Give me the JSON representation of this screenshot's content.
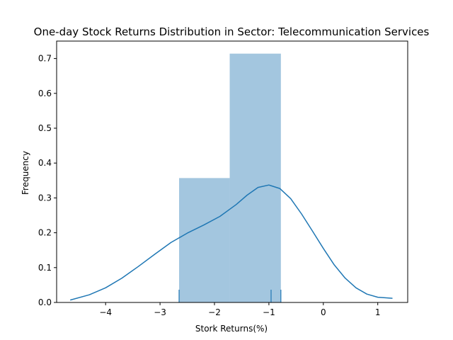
{
  "chart_data": {
    "type": "bar",
    "title": "One-day Stock Returns Distribution in Sector: Telecommunication Services",
    "xlabel": "Stork Returns(%)",
    "ylabel": "Frequency",
    "xlim": [
      -4.9,
      1.55
    ],
    "ylim": [
      0,
      0.75
    ],
    "xticks": [
      -4,
      -3,
      -2,
      -1,
      0,
      1
    ],
    "yticks": [
      0.0,
      0.1,
      0.2,
      0.3,
      0.4,
      0.5,
      0.6,
      0.7
    ],
    "grid": false,
    "histogram": {
      "bins": [
        {
          "x0": -2.65,
          "x1": -1.72,
          "value": 0.357
        },
        {
          "x0": -1.72,
          "x1": -0.78,
          "value": 0.714
        }
      ],
      "color": "#a3c6df"
    },
    "kde": {
      "color": "#1f77b4",
      "x": [
        -4.65,
        -4.3,
        -4.0,
        -3.7,
        -3.4,
        -3.1,
        -2.8,
        -2.5,
        -2.2,
        -1.9,
        -1.6,
        -1.4,
        -1.2,
        -1.0,
        -0.8,
        -0.6,
        -0.4,
        -0.2,
        0.0,
        0.2,
        0.4,
        0.6,
        0.8,
        1.0,
        1.27
      ],
      "y": [
        0.007,
        0.022,
        0.042,
        0.07,
        0.103,
        0.138,
        0.172,
        0.199,
        0.222,
        0.247,
        0.281,
        0.308,
        0.33,
        0.337,
        0.327,
        0.298,
        0.254,
        0.205,
        0.155,
        0.108,
        0.07,
        0.042,
        0.024,
        0.015,
        0.012
      ]
    },
    "rug": {
      "values": [
        -2.65,
        -0.96,
        -0.78
      ],
      "color": "#1f77b4"
    }
  }
}
